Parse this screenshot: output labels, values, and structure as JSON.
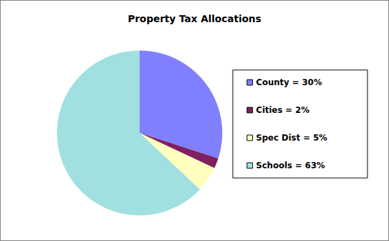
{
  "chart_data": {
    "type": "pie",
    "title": "Property Tax Allocations",
    "categories": [
      "County = 30%",
      "Cities = 2%",
      "Spec Dist = 5%",
      "Schools = 63%"
    ],
    "values": [
      30,
      2,
      5,
      63
    ],
    "colors": [
      "#8080ff",
      "#802060",
      "#ffffc0",
      "#a0e0e0"
    ],
    "legend": "right",
    "data_labels": false
  }
}
